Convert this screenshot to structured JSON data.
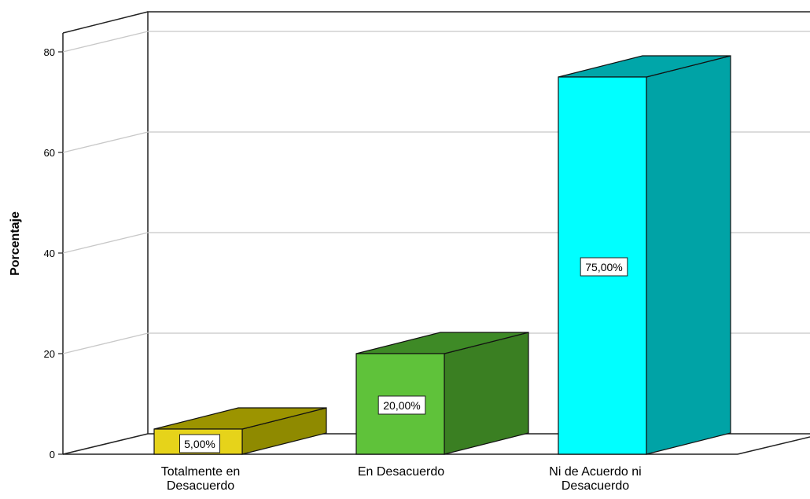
{
  "chart_data": {
    "type": "bar",
    "ylabel": "Porcentaje",
    "ylim": [
      0,
      80
    ],
    "yticks": [
      "0",
      "20",
      "40",
      "60",
      "80"
    ],
    "grid": true,
    "categories": [
      [
        "Totalmente  en",
        "Desacuerdo"
      ],
      [
        "En Desacuerdo"
      ],
      [
        "Ni de Acuerdo ni",
        "Desacuerdo"
      ]
    ],
    "values": [
      5,
      20,
      75
    ],
    "data_labels": [
      "5,00%",
      "20,00%",
      "75,00%"
    ],
    "colors": [
      {
        "front": "#e6d31a",
        "side": "#8f8a00",
        "top": "#9c9400"
      },
      {
        "front": "#5fc23a",
        "side": "#3a7f22",
        "top": "#3e8a26"
      },
      {
        "front": "#00ffff",
        "side": "#00a3a6",
        "top": "#00a6a9"
      }
    ]
  }
}
